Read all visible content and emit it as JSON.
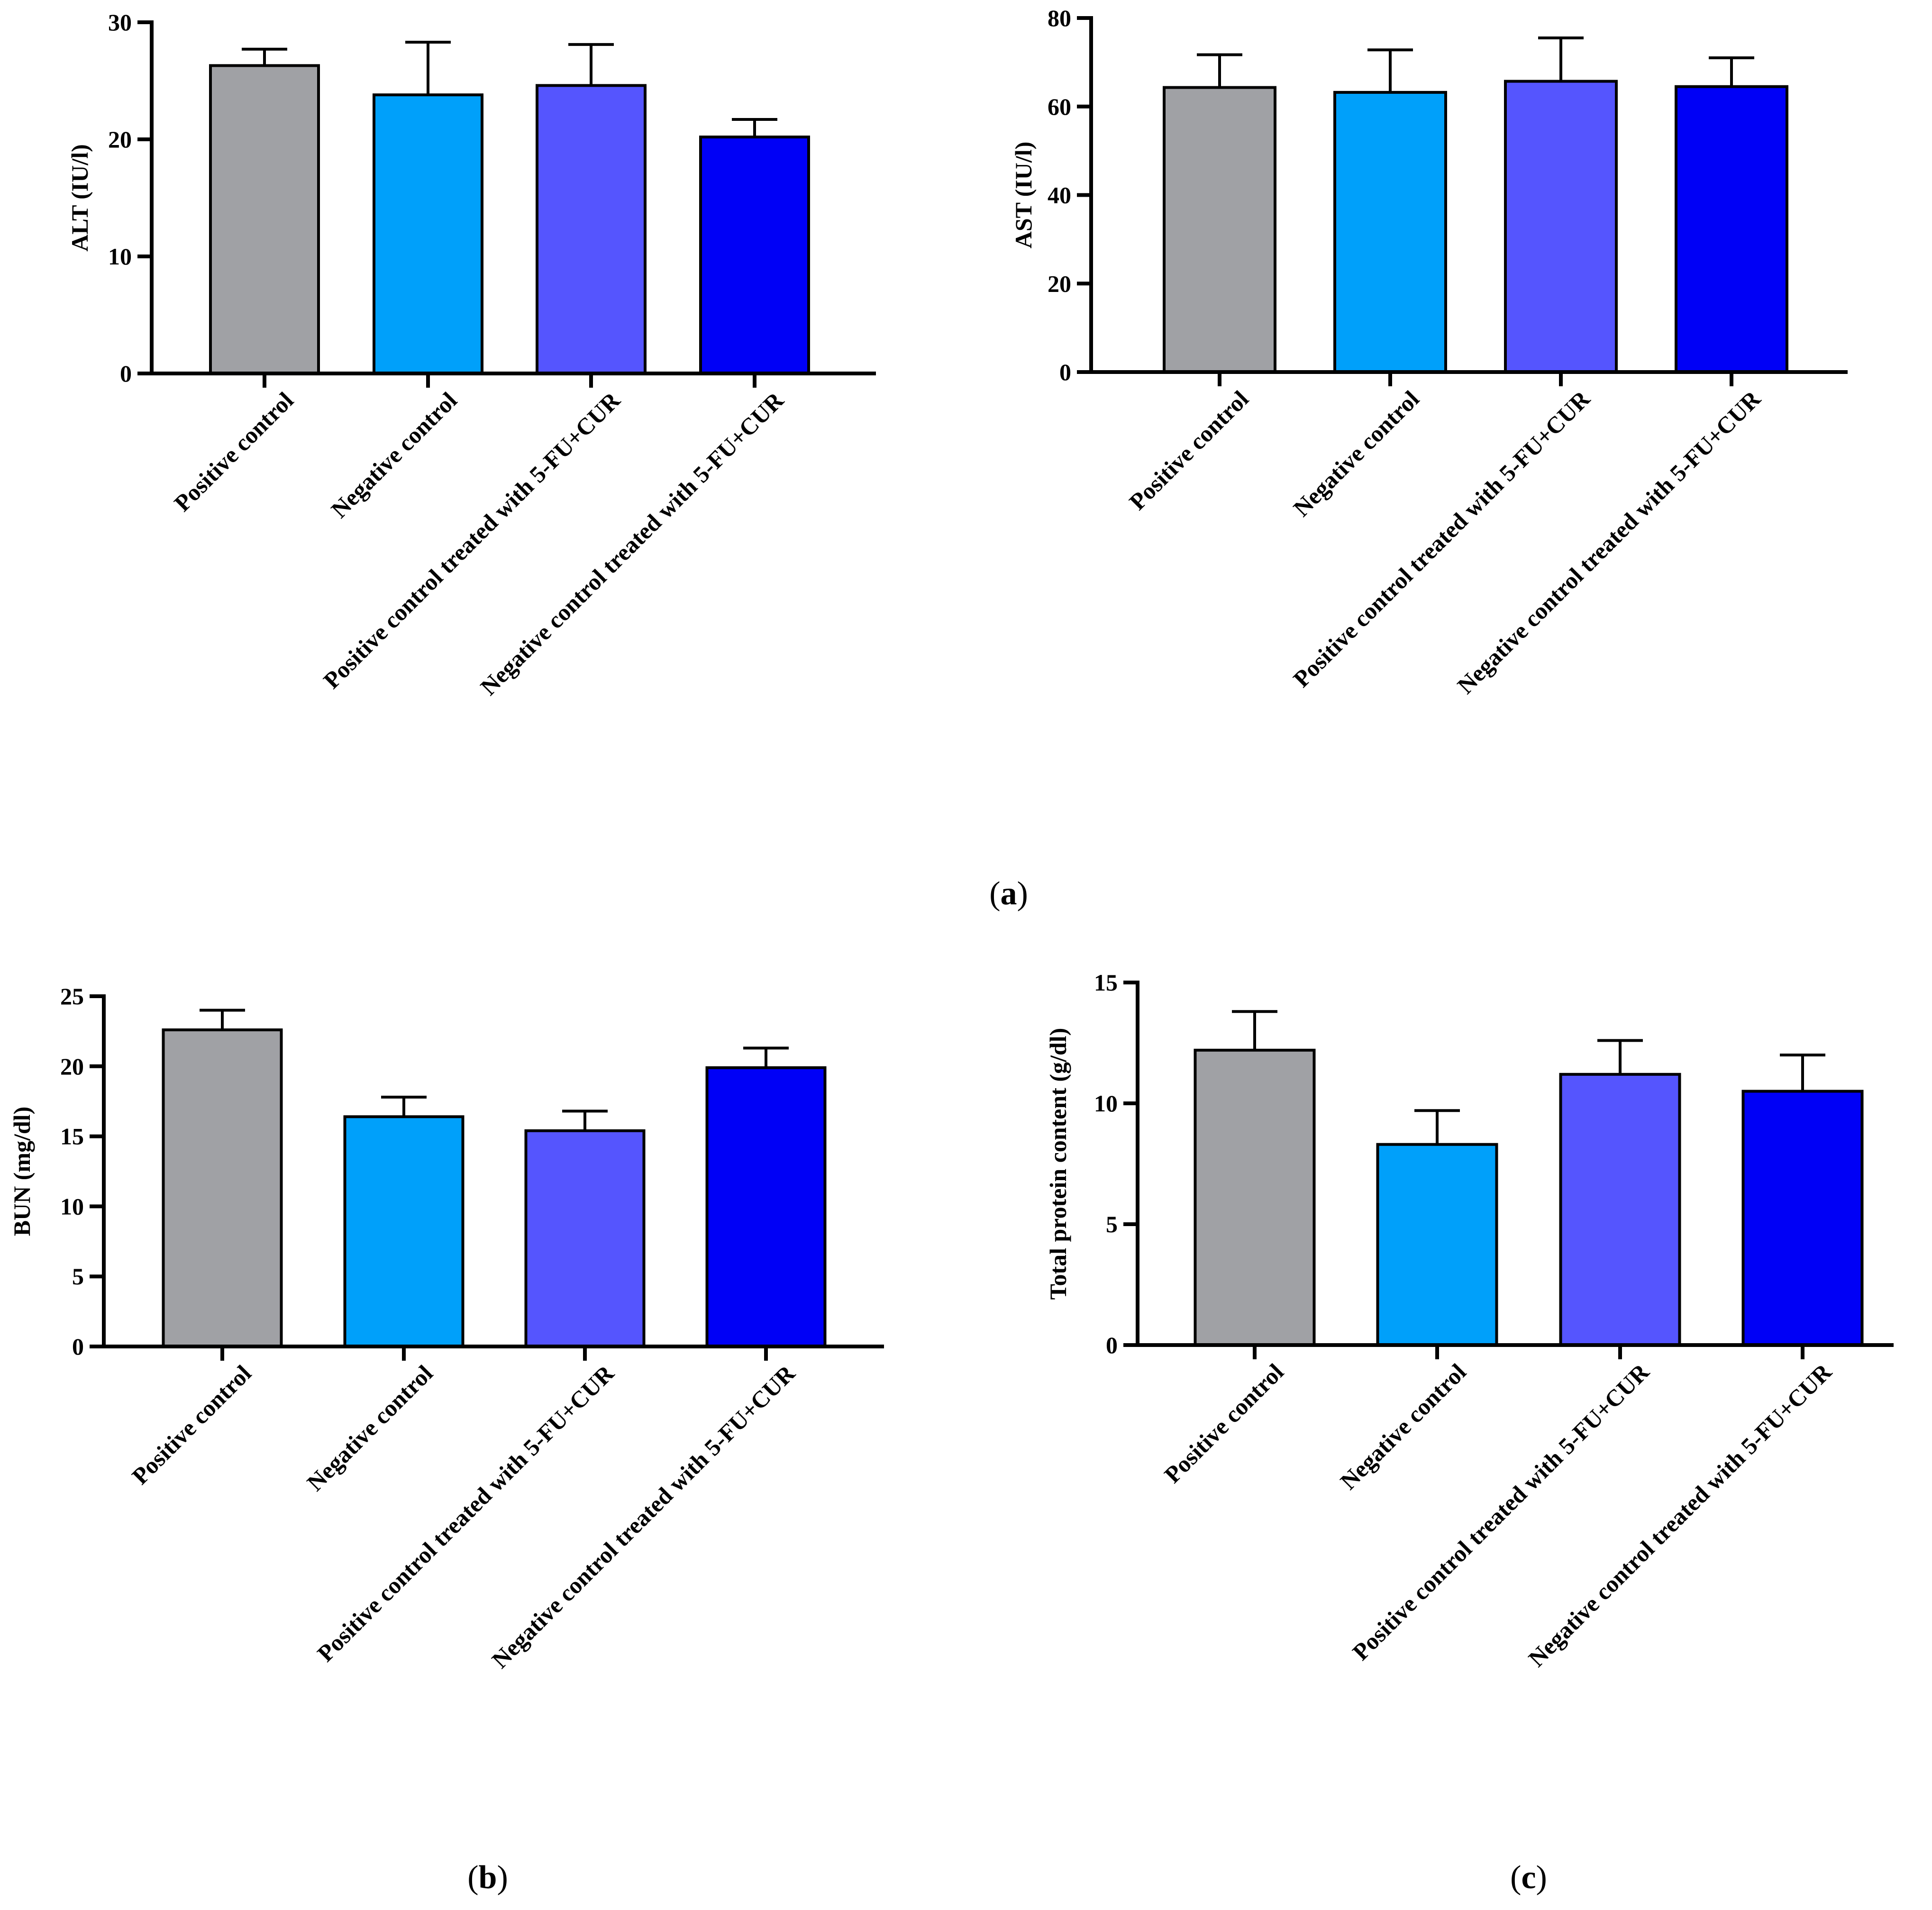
{
  "panel_labels": {
    "a": "a",
    "b": "b",
    "c": "c"
  },
  "colors": {
    "positive_control": "#a0a1a5",
    "negative_control": "#00a0fa",
    "positive_treated": "#5555fe",
    "negative_treated": "#0000f6",
    "axis": "#000000"
  },
  "chart_data": [
    {
      "id": "alt",
      "type": "bar",
      "panel": "a",
      "ylabel": "ALT (IU/l)",
      "categories": [
        "Positive control",
        "Negative control",
        "Positive control treated with 5-FU+CUR",
        "Negative control treated with 5-FU+CUR"
      ],
      "values": [
        26.3,
        23.8,
        24.6,
        20.2
      ],
      "errors": [
        1.4,
        4.5,
        3.5,
        1.5
      ],
      "ylim": [
        0,
        30
      ],
      "yticks": [
        "0",
        "10",
        "20",
        "30"
      ]
    },
    {
      "id": "ast",
      "type": "bar",
      "panel": "a",
      "ylabel": "AST (IU/l)",
      "categories": [
        "Positive control",
        "Negative control",
        "Positive control treated with 5-FU+CUR",
        "Negative control treated with 5-FU+CUR"
      ],
      "values": [
        64.3,
        63.2,
        65.7,
        64.5
      ],
      "errors": [
        7.4,
        9.6,
        9.8,
        6.5
      ],
      "ylim": [
        0,
        80
      ],
      "yticks": [
        "0",
        "20",
        "40",
        "60",
        "80"
      ]
    },
    {
      "id": "bun",
      "type": "bar",
      "panel": "b",
      "ylabel": "BUN (mg/dl)",
      "categories": [
        "Positive control",
        "Negative control",
        "Positive control treated with 5-FU+CUR",
        "Negative control treated with 5-FU+CUR"
      ],
      "values": [
        22.6,
        16.4,
        15.4,
        19.9
      ],
      "errors": [
        1.4,
        1.4,
        1.4,
        1.4
      ],
      "ylim": [
        0,
        25
      ],
      "yticks": [
        "0",
        "5",
        "10",
        "15",
        "20",
        "25"
      ]
    },
    {
      "id": "protein",
      "type": "bar",
      "panel": "c",
      "ylabel": "Total protein content (g/dl)",
      "categories": [
        "Positive control",
        "Negative control",
        "Positive control treated with 5-FU+CUR",
        "Negative control treated with 5-FU+CUR"
      ],
      "values": [
        12.2,
        8.3,
        11.2,
        10.5
      ],
      "errors": [
        1.6,
        1.4,
        1.4,
        1.5
      ],
      "ylim": [
        0,
        15
      ],
      "yticks": [
        "0",
        "5",
        "10",
        "15"
      ]
    }
  ]
}
